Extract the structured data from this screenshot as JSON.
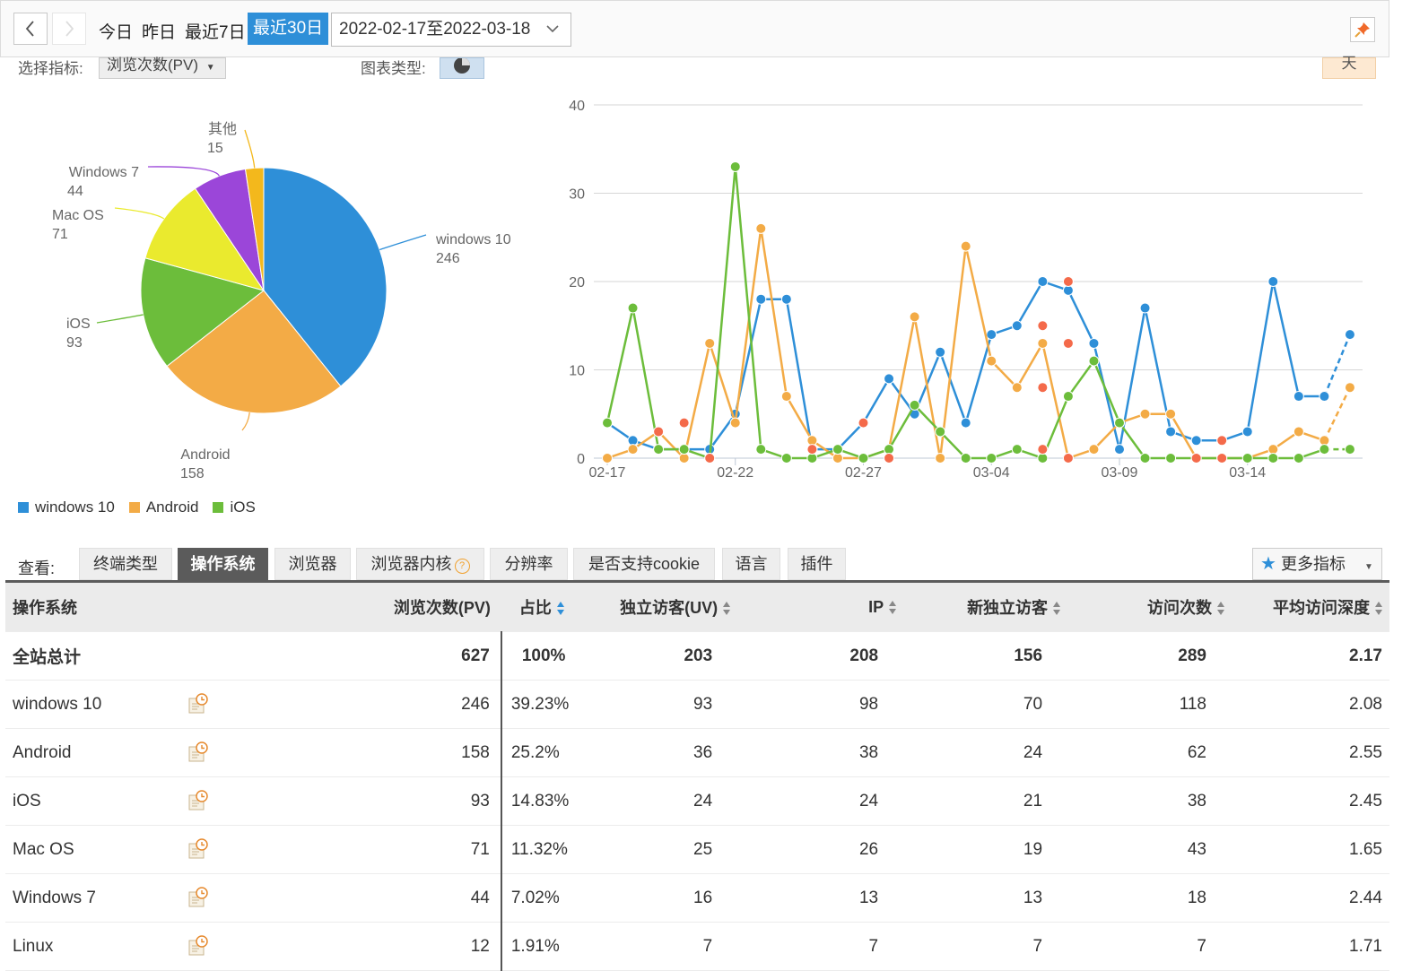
{
  "toolbar": {
    "quick_ranges": [
      "今日",
      "昨日",
      "最近7日",
      "最近30日"
    ],
    "active_range": "最近30日",
    "date_range": "2022-02-17至2022-03-18"
  },
  "controls": {
    "metric_label": "选择指标:",
    "metric_value": "浏览次数(PV)",
    "chart_type_label": "图表类型:",
    "day_button": "天"
  },
  "colors": {
    "windows10": "#2e8fd8",
    "android": "#f3ab46",
    "ios": "#6cbd3b",
    "macos": "#eaea2e",
    "windows7": "#9b46d9",
    "other": "#f3b81c",
    "highlight": "#f46a4a"
  },
  "chart_data": [
    {
      "type": "pie",
      "slices": [
        {
          "name": "windows 10",
          "value": 246
        },
        {
          "name": "Android",
          "value": 158
        },
        {
          "name": "iOS",
          "value": 93
        },
        {
          "name": "Mac OS",
          "value": 71
        },
        {
          "name": "Windows 7",
          "value": 44
        },
        {
          "name": "其他",
          "value": 15
        }
      ]
    },
    {
      "type": "line",
      "x": [
        "02-17",
        "02-18",
        "02-19",
        "02-20",
        "02-21",
        "02-22",
        "02-23",
        "02-24",
        "02-25",
        "02-26",
        "02-27",
        "02-28",
        "03-01",
        "03-02",
        "03-03",
        "03-04",
        "03-05",
        "03-06",
        "03-07",
        "03-08",
        "03-09",
        "03-10",
        "03-11",
        "03-12",
        "03-13",
        "03-14",
        "03-15",
        "03-16",
        "03-17",
        "03-18"
      ],
      "xticks": [
        "02-17",
        "02-22",
        "02-27",
        "03-04",
        "03-09",
        "03-14"
      ],
      "ylim": [
        0,
        40
      ],
      "yticks": [
        0,
        10,
        20,
        30,
        40
      ],
      "grid": true,
      "legend_position": "bottom-left",
      "series": [
        {
          "name": "windows 10",
          "values": [
            4,
            2,
            1,
            1,
            1,
            5,
            18,
            18,
            1,
            1,
            4,
            9,
            5,
            12,
            4,
            14,
            15,
            20,
            19,
            13,
            1,
            17,
            3,
            2,
            2,
            3,
            20,
            7,
            7,
            14
          ]
        },
        {
          "name": "Android",
          "values": [
            0,
            1,
            3,
            0,
            13,
            4,
            26,
            7,
            2,
            0,
            0,
            1,
            16,
            0,
            24,
            11,
            8,
            13,
            0,
            1,
            4,
            5,
            5,
            0,
            0,
            0,
            1,
            3,
            2,
            8
          ]
        },
        {
          "name": "iOS",
          "values": [
            4,
            17,
            1,
            1,
            0,
            33,
            1,
            0,
            0,
            1,
            0,
            1,
            6,
            3,
            0,
            0,
            1,
            0,
            7,
            11,
            4,
            0,
            0,
            0,
            0,
            0,
            0,
            0,
            1,
            1
          ]
        }
      ],
      "highlight_points": [
        {
          "x": "02-19",
          "y": 3
        },
        {
          "x": "02-20",
          "y": 4
        },
        {
          "x": "02-21",
          "y": 0
        },
        {
          "x": "02-25",
          "y": 1
        },
        {
          "x": "02-27",
          "y": 4
        },
        {
          "x": "02-28",
          "y": 0
        },
        {
          "x": "03-06",
          "y": 15
        },
        {
          "x": "03-06",
          "y": 8
        },
        {
          "x": "03-07",
          "y": 20
        },
        {
          "x": "03-07",
          "y": 13
        },
        {
          "x": "03-06",
          "y": 1
        },
        {
          "x": "03-07",
          "y": 0
        },
        {
          "x": "03-12",
          "y": 0
        },
        {
          "x": "03-13",
          "y": 2
        },
        {
          "x": "03-13",
          "y": 0
        }
      ]
    }
  ],
  "tabs": {
    "label": "查看:",
    "items": [
      "终端类型",
      "操作系统",
      "浏览器",
      "浏览器内核",
      "分辨率",
      "是否支持cookie",
      "语言",
      "插件"
    ],
    "active": "操作系统",
    "help_glyph": "?",
    "more": "更多指标"
  },
  "table": {
    "headers": [
      "操作系统",
      "浏览次数(PV)",
      "占比",
      "独立访客(UV)",
      "IP",
      "新独立访客",
      "访问次数",
      "平均访问深度"
    ],
    "total": [
      "全站总计",
      "627",
      "100%",
      "203",
      "208",
      "156",
      "289",
      "2.17"
    ],
    "rows": [
      [
        "windows 10",
        "246",
        "39.23%",
        "93",
        "98",
        "70",
        "118",
        "2.08"
      ],
      [
        "Android",
        "158",
        "25.2%",
        "36",
        "38",
        "24",
        "62",
        "2.55"
      ],
      [
        "iOS",
        "93",
        "14.83%",
        "24",
        "24",
        "21",
        "38",
        "2.45"
      ],
      [
        "Mac OS",
        "71",
        "11.32%",
        "25",
        "26",
        "19",
        "43",
        "1.65"
      ],
      [
        "Windows 7",
        "44",
        "7.02%",
        "16",
        "13",
        "13",
        "18",
        "2.44"
      ],
      [
        "Linux",
        "12",
        "1.91%",
        "7",
        "7",
        "7",
        "7",
        "1.71"
      ]
    ]
  },
  "icons": {
    "prev": "chevron-left-icon",
    "next": "chevron-right-icon",
    "date_dropdown": "chevron-down-icon",
    "pin": "pin-icon",
    "chart_type": "pie-chart-icon",
    "more_star": "star-icon",
    "trend": "trend-history-icon"
  }
}
